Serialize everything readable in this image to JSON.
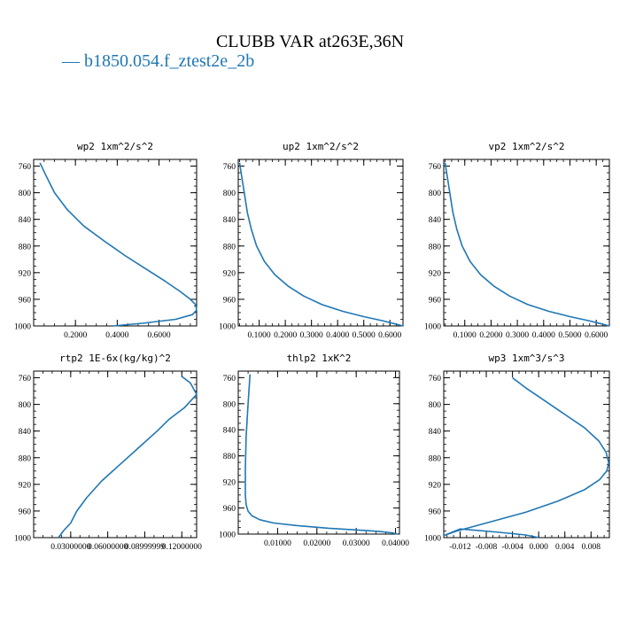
{
  "title": "CLUBB VAR at263E,36N",
  "legend": {
    "marker": "—",
    "label": "b1850.054.f_ztest2e_2b",
    "color": "#1f77b4"
  },
  "chart_data": [
    {
      "type": "line",
      "title": "wp2   1xm^2/s^2",
      "ylim": [
        1000,
        750
      ],
      "yticks": [
        760,
        800,
        840,
        880,
        920,
        960,
        1000
      ],
      "xlim": [
        0.0,
        0.78
      ],
      "xticks": [
        0.2,
        0.4,
        0.6
      ],
      "xtick_labels": [
        "0.2000",
        "0.4000",
        "0.6000"
      ],
      "series": [
        {
          "color": "#1f77b4",
          "x": [
            0.03,
            0.06,
            0.1,
            0.16,
            0.24,
            0.34,
            0.44,
            0.54,
            0.63,
            0.7,
            0.75,
            0.775,
            0.78,
            0.76,
            0.68,
            0.52,
            0.38
          ],
          "y": [
            755,
            775,
            800,
            825,
            850,
            873,
            895,
            915,
            933,
            948,
            960,
            968,
            976,
            983,
            990,
            996,
            1000
          ]
        }
      ]
    },
    {
      "type": "line",
      "title": "up2   1xm^2/s^2",
      "ylim": [
        1000,
        750
      ],
      "yticks": [
        760,
        800,
        840,
        880,
        920,
        960,
        1000
      ],
      "xlim": [
        0.02,
        0.65
      ],
      "xticks": [
        0.1,
        0.2,
        0.3,
        0.4,
        0.5,
        0.6
      ],
      "xtick_labels": [
        "0.1000",
        "0.2000",
        "0.3000",
        "0.4000",
        "0.5000",
        "0.6000"
      ],
      "series": [
        {
          "color": "#1f77b4",
          "x": [
            0.025,
            0.035,
            0.045,
            0.055,
            0.07,
            0.09,
            0.12,
            0.16,
            0.21,
            0.27,
            0.34,
            0.42,
            0.5,
            0.57,
            0.62,
            0.65
          ],
          "y": [
            755,
            780,
            805,
            830,
            855,
            880,
            903,
            923,
            940,
            955,
            968,
            978,
            986,
            992,
            997,
            1000
          ]
        }
      ]
    },
    {
      "type": "line",
      "title": "vp2   1xm^2/s^2",
      "ylim": [
        1000,
        750
      ],
      "yticks": [
        760,
        800,
        840,
        880,
        920,
        960,
        1000
      ],
      "xlim": [
        0.02,
        0.65
      ],
      "xticks": [
        0.1,
        0.2,
        0.3,
        0.4,
        0.5,
        0.6
      ],
      "xtick_labels": [
        "0.1000",
        "0.2000",
        "0.3000",
        "0.4000",
        "0.5000",
        "0.6000"
      ],
      "series": [
        {
          "color": "#1f77b4",
          "x": [
            0.025,
            0.035,
            0.045,
            0.055,
            0.07,
            0.09,
            0.12,
            0.16,
            0.21,
            0.27,
            0.34,
            0.42,
            0.5,
            0.57,
            0.62,
            0.65
          ],
          "y": [
            755,
            780,
            805,
            830,
            855,
            880,
            903,
            923,
            940,
            955,
            968,
            978,
            986,
            992,
            997,
            1000
          ]
        }
      ]
    },
    {
      "type": "line",
      "title": "rtp2   1E-6x(kg/kg)^2",
      "ylim": [
        1000,
        750
      ],
      "yticks": [
        760,
        800,
        840,
        880,
        920,
        960,
        1000
      ],
      "xlim": [
        0.0,
        0.132
      ],
      "xticks": [
        0.03,
        0.06,
        0.09,
        0.12
      ],
      "xtick_labels": [
        "0.03000000",
        "0.06000000",
        "0.08999999",
        "0.12000000"
      ],
      "series": [
        {
          "color": "#1f77b4",
          "x": [
            0.02,
            0.024,
            0.03,
            0.035,
            0.043,
            0.055,
            0.07,
            0.085,
            0.1,
            0.11,
            0.122,
            0.132,
            0.127,
            0.12
          ],
          "y": [
            1000,
            990,
            978,
            960,
            940,
            915,
            890,
            865,
            840,
            822,
            805,
            785,
            768,
            758
          ]
        }
      ]
    },
    {
      "type": "line",
      "title": "thlp2   1xK^2",
      "ylim": [
        1000,
        750
      ],
      "yticks": [
        760,
        800,
        840,
        880,
        920,
        960,
        1000
      ],
      "xlim": [
        0.0,
        0.041
      ],
      "xticks": [
        0.01,
        0.02,
        0.03,
        0.04
      ],
      "xtick_labels": [
        "0.01000",
        "0.02000",
        "0.03000",
        "0.04000"
      ],
      "series": [
        {
          "color": "#1f77b4",
          "x": [
            0.003,
            0.0025,
            0.002,
            0.0018,
            0.0018,
            0.002,
            0.0025,
            0.0035,
            0.0055,
            0.009,
            0.015,
            0.023,
            0.031,
            0.036,
            0.039,
            0.0405
          ],
          "y": [
            755,
            800,
            850,
            900,
            940,
            955,
            965,
            972,
            978,
            983,
            987,
            991,
            994,
            996,
            998,
            1000
          ]
        }
      ]
    },
    {
      "type": "line",
      "title": "wp3   1xm^3/s^3",
      "ylim": [
        1000,
        750
      ],
      "yticks": [
        760,
        800,
        840,
        880,
        920,
        960,
        1000
      ],
      "xlim": [
        -0.0145,
        0.0108
      ],
      "xticks": [
        -0.012,
        -0.008,
        -0.004,
        0.0,
        0.004,
        0.008
      ],
      "xtick_labels": [
        "-0.012",
        "-0.008",
        "-0.004",
        "0.000",
        "0.004",
        "0.008"
      ],
      "series": [
        {
          "color": "#1f77b4",
          "x": [
            -0.004,
            -0.002,
            0.001,
            0.004,
            0.007,
            0.0092,
            0.0103,
            0.0107,
            0.0104,
            0.0093,
            0.007,
            0.003,
            -0.002,
            -0.008,
            -0.0125,
            -0.0145,
            -0.012,
            -0.006,
            -0.002,
            0.0
          ],
          "y": [
            760,
            775,
            795,
            815,
            835,
            855,
            872,
            888,
            900,
            913,
            928,
            945,
            962,
            978,
            990,
            997,
            987,
            992,
            996,
            1000
          ]
        }
      ]
    }
  ]
}
